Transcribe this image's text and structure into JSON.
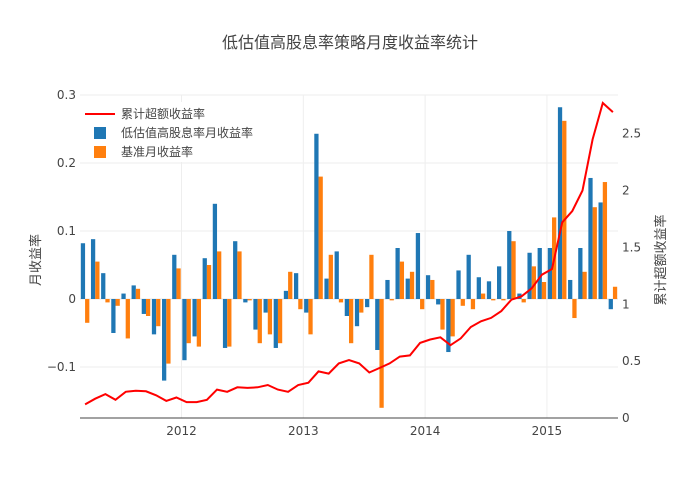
{
  "chart_data": {
    "type": "bar",
    "title": "低估值高股息率策略月度收益率统计",
    "ylabel": "月收益率",
    "y2label": "累计超额收益率",
    "ylim": [
      -0.175,
      0.3
    ],
    "y2lim": [
      0,
      2.84
    ],
    "yticks": [
      -0.1,
      0,
      0.1,
      0.2,
      0.3
    ],
    "yticklabels": [
      "−0.1",
      "0",
      "0.1",
      "0.2",
      "0.3"
    ],
    "y2ticks": [
      0,
      0.5,
      1,
      1.5,
      2,
      2.5
    ],
    "y2ticklabels": [
      "0",
      "0.5",
      "1",
      "1.5",
      "2",
      "2.5"
    ],
    "xticks": [
      {
        "at": 10,
        "label": "2012"
      },
      {
        "at": 22,
        "label": "2013"
      },
      {
        "at": 34,
        "label": "2014"
      },
      {
        "at": 46,
        "label": "2015"
      }
    ],
    "legend_position": "top-left",
    "grid": true,
    "colors": {
      "strategy": "#1f77b4",
      "benchmark": "#ff7f0e",
      "cumulative": "#ff0000",
      "grid": "#eeeeee",
      "zeroline": "#444444"
    },
    "series": [
      {
        "name": "低估值高股息率月收益率",
        "kind": "bar",
        "values": [
          0.082,
          0.088,
          0.038,
          -0.05,
          0.008,
          0.02,
          -0.022,
          -0.052,
          -0.12,
          0.065,
          -0.09,
          -0.055,
          0.06,
          0.14,
          -0.072,
          0.085,
          -0.005,
          -0.045,
          -0.02,
          -0.072,
          0.012,
          0.038,
          -0.02,
          0.243,
          0.03,
          0.07,
          -0.025,
          -0.04,
          -0.012,
          -0.075,
          0.028,
          0.075,
          0.03,
          0.097,
          0.035,
          -0.008,
          -0.078,
          0.042,
          0.065,
          0.032,
          0.026,
          0.048,
          0.1,
          0.008,
          0.068,
          0.075,
          0.075,
          0.282,
          0.028,
          0.075,
          0.178,
          0.142,
          -0.015
        ]
      },
      {
        "name": "基准月收益率",
        "kind": "bar",
        "values": [
          -0.035,
          0.055,
          -0.005,
          -0.01,
          -0.058,
          0.015,
          -0.025,
          -0.04,
          -0.095,
          0.045,
          -0.065,
          -0.07,
          0.05,
          0.07,
          -0.07,
          0.07,
          -0.002,
          -0.065,
          -0.052,
          -0.065,
          0.04,
          -0.015,
          -0.052,
          0.18,
          0.065,
          -0.005,
          -0.065,
          -0.02,
          0.065,
          -0.16,
          -0.002,
          0.055,
          0.04,
          -0.015,
          0.028,
          -0.045,
          -0.055,
          -0.01,
          -0.015,
          0.008,
          -0.002,
          -0.002,
          0.085,
          -0.005,
          0.048,
          0.025,
          0.12,
          0.262,
          -0.028,
          0.04,
          0.135,
          0.172,
          0.018
        ]
      },
      {
        "name": "累计超额收益率",
        "kind": "line",
        "axis": "y2",
        "values": [
          0.12,
          0.17,
          0.21,
          0.16,
          0.23,
          0.24,
          0.235,
          0.2,
          0.15,
          0.18,
          0.14,
          0.14,
          0.16,
          0.25,
          0.23,
          0.27,
          0.265,
          0.27,
          0.29,
          0.25,
          0.23,
          0.29,
          0.31,
          0.41,
          0.39,
          0.48,
          0.51,
          0.48,
          0.4,
          0.44,
          0.48,
          0.54,
          0.55,
          0.66,
          0.69,
          0.71,
          0.64,
          0.7,
          0.8,
          0.85,
          0.88,
          0.94,
          1.04,
          1.07,
          1.14,
          1.26,
          1.31,
          1.72,
          1.82,
          2.0,
          2.45,
          2.77,
          2.69
        ]
      }
    ]
  }
}
